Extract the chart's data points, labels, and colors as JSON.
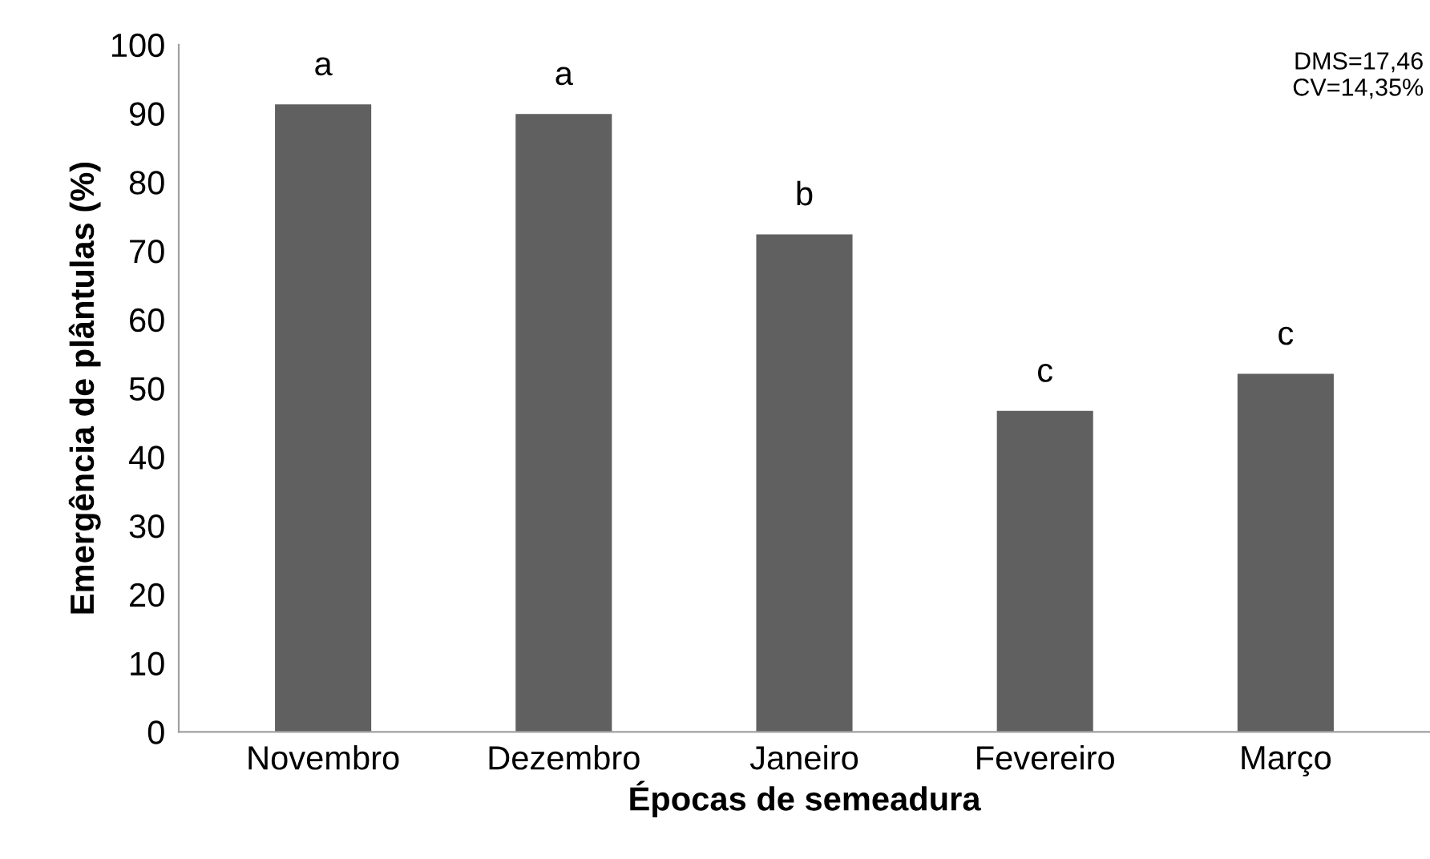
{
  "chart_data": {
    "type": "bar",
    "xlabel": "Épocas de semeadura",
    "ylabel": "Emergência de plântulas (%)",
    "categories": [
      "Novembro",
      "Dezembro",
      "Janeiro",
      "Fevereiro",
      "Março"
    ],
    "values": [
      91.3,
      89.9,
      72.4,
      46.7,
      52.1
    ],
    "color": "#606060",
    "ylim": [
      0,
      100
    ],
    "yticks": [
      0,
      10,
      20,
      30,
      40,
      50,
      60,
      70,
      80,
      90,
      100
    ],
    "grid": false,
    "annotations": [
      {
        "text": "a",
        "x": "Novembro",
        "y": 91.3
      },
      {
        "text": "a",
        "x": "Dezembro",
        "y": 89.9
      },
      {
        "text": "b",
        "x": "Janeiro",
        "y": 72.4
      },
      {
        "text": "c",
        "x": "Fevereiro",
        "y": 46.7
      },
      {
        "text": "c",
        "x": "Março",
        "y": 52.1
      },
      "DMS=17,46\nCV=14,35%"
    ]
  }
}
